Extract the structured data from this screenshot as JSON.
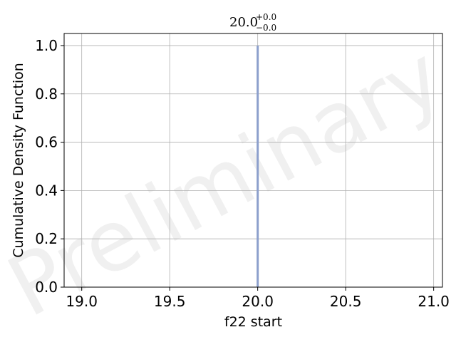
{
  "chart_data": {
    "type": "line",
    "title": {
      "base": "20.0",
      "upper": "+0.0",
      "lower": "−0.0"
    },
    "xlabel": "f22 start",
    "ylabel": "Cumulative Density Function",
    "xlim": [
      18.9,
      21.05
    ],
    "ylim": [
      0.0,
      1.05
    ],
    "xticks": [
      19.0,
      19.5,
      20.0,
      20.5,
      21.0
    ],
    "xtick_labels": [
      "19.0",
      "19.5",
      "20.0",
      "20.5",
      "21.0"
    ],
    "yticks": [
      0.0,
      0.2,
      0.4,
      0.6,
      0.8,
      1.0
    ],
    "ytick_labels": [
      "0.0",
      "0.2",
      "0.4",
      "0.6",
      "0.8",
      "1.0"
    ],
    "grid": true,
    "watermark": "Preliminary",
    "series": [
      {
        "color": "#8c9fcc",
        "x": [
          20.0,
          20.0
        ],
        "y": [
          0.0,
          1.0
        ]
      }
    ]
  }
}
